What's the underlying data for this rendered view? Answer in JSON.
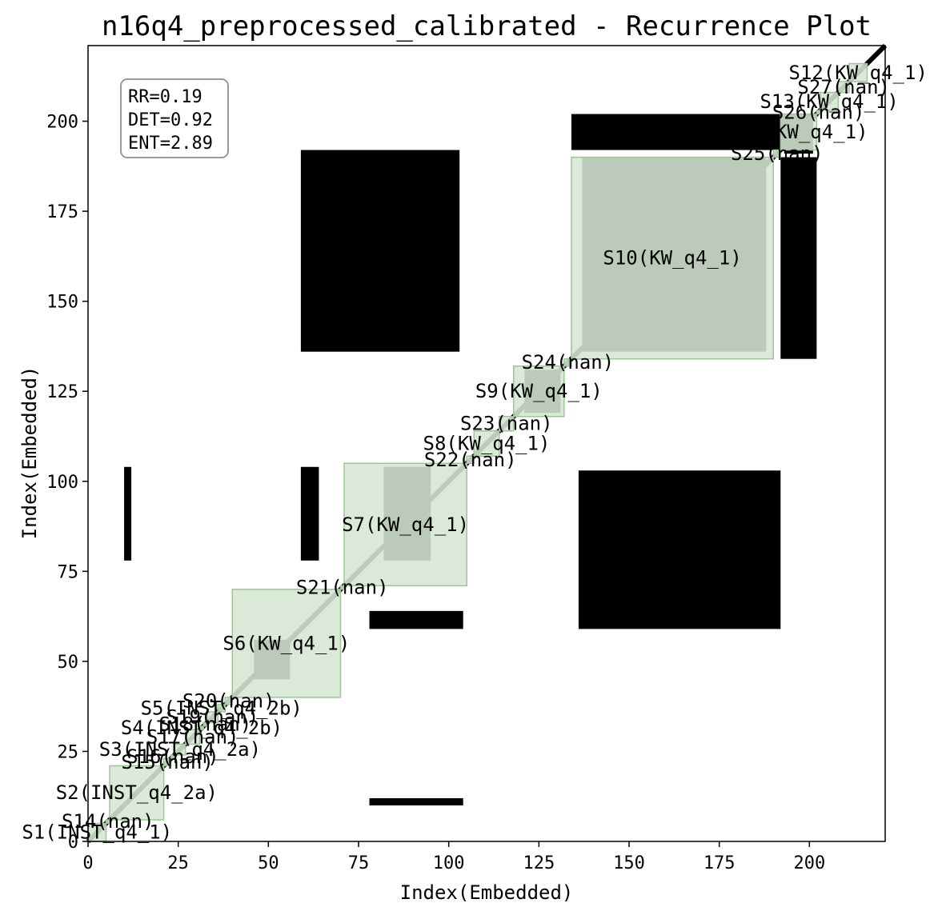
{
  "chart_data": {
    "type": "heatmap",
    "title": "n16q4_preprocessed_calibrated - Recurrence Plot",
    "xlabel": "Index(Embedded)",
    "ylabel": "Index(Embedded)",
    "xlim": [
      0,
      221
    ],
    "ylim": [
      0,
      221
    ],
    "x_ticks": [
      0,
      25,
      50,
      75,
      100,
      125,
      150,
      175,
      200
    ],
    "y_ticks": [
      0,
      25,
      50,
      75,
      100,
      125,
      150,
      175,
      200
    ],
    "grid": false,
    "metrics": [
      "RR=0.19",
      "DET=0.92",
      "ENT=2.89"
    ],
    "colors": {
      "recurrence": "#000000",
      "segment_fill": "#d6e7d3",
      "segment_edge": "#9fc49a",
      "background": "#ffffff"
    },
    "segments": [
      {
        "label": "S1(INST_q4_1)",
        "start": 0,
        "end": 5
      },
      {
        "label": "S14(nan)",
        "start": 5,
        "end": 6
      },
      {
        "label": "S2(INST_q4_2a)",
        "start": 6,
        "end": 21
      },
      {
        "label": "S15(nan)",
        "start": 21,
        "end": 23
      },
      {
        "label": "S16(nan)",
        "start": 23,
        "end": 24
      },
      {
        "label": "S3(INST_q4_2a)",
        "start": 24,
        "end": 27
      },
      {
        "label": "S17(nan)",
        "start": 27,
        "end": 31
      },
      {
        "label": "S4(INST_q4_2b)",
        "start": 31,
        "end": 32
      },
      {
        "label": "S18(nan)",
        "start": 32,
        "end": 33
      },
      {
        "label": "S19(nan)",
        "start": 33,
        "end": 36
      },
      {
        "label": "S5(INST_q4_2b)",
        "start": 36,
        "end": 38
      },
      {
        "label": "S20(nan)",
        "start": 38,
        "end": 40
      },
      {
        "label": "S6(KW_q4_1)",
        "start": 40,
        "end": 70
      },
      {
        "label": "S21(nan)",
        "start": 70,
        "end": 71
      },
      {
        "label": "S7(KW_q4_1)",
        "start": 71,
        "end": 105
      },
      {
        "label": "S22(nan)",
        "start": 105,
        "end": 107
      },
      {
        "label": "S8(KW_q4_1)",
        "start": 107,
        "end": 114
      },
      {
        "label": "S23(nan)",
        "start": 114,
        "end": 118
      },
      {
        "label": "S9(KW_q4_1)",
        "start": 118,
        "end": 132
      },
      {
        "label": "S24(nan)",
        "start": 132,
        "end": 134
      },
      {
        "label": "S10(KW_q4_1)",
        "start": 134,
        "end": 190
      },
      {
        "label": "S25(nan)",
        "start": 190,
        "end": 192
      },
      {
        "label": "S11(KW_q4_1)",
        "start": 192,
        "end": 202
      },
      {
        "label": "S26(nan)",
        "start": 202,
        "end": 203
      },
      {
        "label": "S13(KW_q4_1)",
        "start": 203,
        "end": 208
      },
      {
        "label": "S27(nan)",
        "start": 208,
        "end": 211
      },
      {
        "label": "S12(KW_q4_1)",
        "start": 211,
        "end": 216
      }
    ],
    "recurrence_regions": [
      {
        "x": [
          0,
          221
        ],
        "y": [
          0,
          221
        ],
        "kind": "diagonal"
      },
      {
        "x": [
          82,
          95
        ],
        "y": [
          78,
          104
        ],
        "kind": "block"
      },
      {
        "x": [
          46,
          56
        ],
        "y": [
          45,
          56
        ],
        "kind": "block"
      },
      {
        "x": [
          137,
          188
        ],
        "y": [
          136,
          190
        ],
        "kind": "block"
      },
      {
        "x": [
          193,
          201
        ],
        "y": [
          191,
          202
        ],
        "kind": "block"
      },
      {
        "x": [
          121,
          131
        ],
        "y": [
          119,
          131
        ],
        "kind": "block"
      },
      {
        "x": [
          134,
          200
        ],
        "y": [
          192,
          202
        ],
        "kind": "block"
      },
      {
        "x": [
          192,
          202
        ],
        "y": [
          134,
          190
        ],
        "kind": "block"
      },
      {
        "x": [
          59,
          103
        ],
        "y": [
          136,
          192
        ],
        "kind": "block"
      },
      {
        "x": [
          136,
          192
        ],
        "y": [
          59,
          103
        ],
        "kind": "block"
      },
      {
        "x": [
          78,
          104
        ],
        "y": [
          59,
          64
        ],
        "kind": "block"
      },
      {
        "x": [
          59,
          64
        ],
        "y": [
          78,
          104
        ],
        "kind": "block"
      },
      {
        "x": [
          78,
          104
        ],
        "y": [
          10,
          12
        ],
        "kind": "block"
      },
      {
        "x": [
          10,
          12
        ],
        "y": [
          78,
          104
        ],
        "kind": "block"
      }
    ]
  }
}
